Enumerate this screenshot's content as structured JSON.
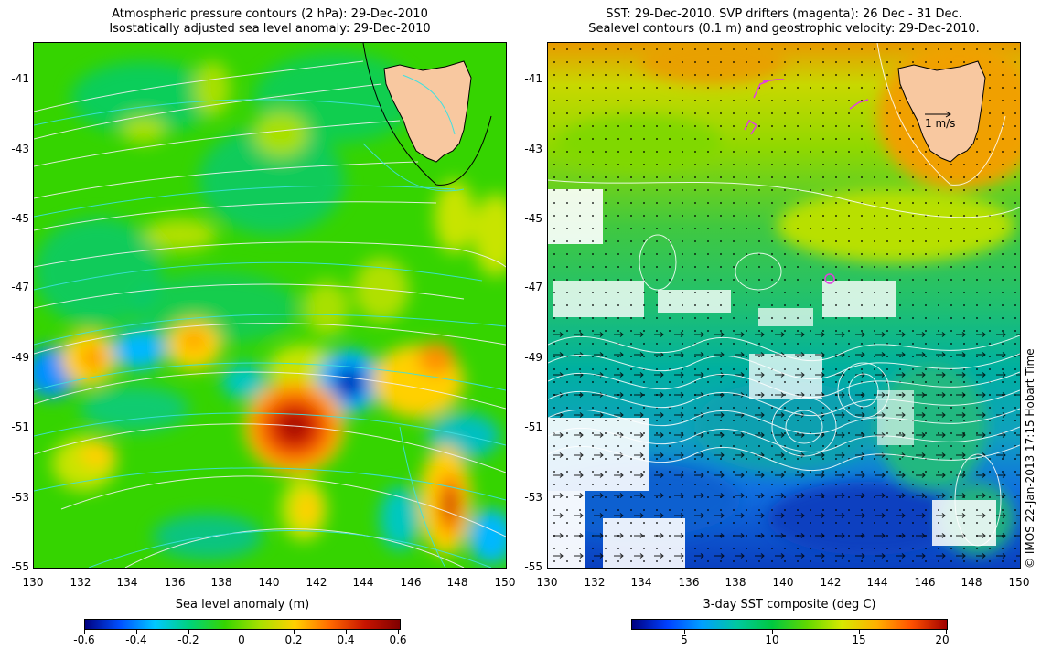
{
  "left_panel": {
    "title_line1": "Atmospheric pressure contours (2 hPa): 29-Dec-2010",
    "title_line2": "Isostatically adjusted sea level anomaly: 29-Dec-2010",
    "colorbar": {
      "label": "Sea level anomaly (m)",
      "ticks": [
        "-0.6",
        "-0.4",
        "-0.2",
        "0",
        "0.2",
        "0.4",
        "0.6"
      ],
      "colors": [
        "#00007f",
        "#0050ff",
        "#00c8ff",
        "#00d27a",
        "#35d400",
        "#a8e000",
        "#ffd000",
        "#ff6a00",
        "#c81400",
        "#7f0000"
      ]
    }
  },
  "right_panel": {
    "title_line1": "SST: 29-Dec-2010. SVP drifters (magenta): 26 Dec - 31 Dec.",
    "title_line2": "Sealevel contours (0.1 m) and geostrophic velocity: 29-Dec-2010.",
    "scale_label": "1 m/s",
    "colorbar": {
      "label": "3-day SST composite (deg C)",
      "ticks": [
        "5",
        "10",
        "15",
        "20"
      ],
      "colors": [
        "#00007f",
        "#0040ff",
        "#00a0ff",
        "#00c8a0",
        "#00c840",
        "#60d800",
        "#d8e800",
        "#ffb000",
        "#ff5000",
        "#a00000"
      ]
    }
  },
  "axes": {
    "lat_ticks": [
      "-41",
      "-43",
      "-45",
      "-47",
      "-49",
      "-51",
      "-53",
      "-55"
    ],
    "lon_ticks": [
      "130",
      "132",
      "134",
      "136",
      "138",
      "140",
      "142",
      "144",
      "146",
      "148",
      "150"
    ]
  },
  "copyright": "© IMOS 22-Jan-2013 17:15 Hobart Time",
  "colors": {
    "land": "#f8c8a0",
    "sla_background": "#35d400",
    "sst_warm": "#e89a00",
    "sst_mid": "#30c830",
    "sst_cold": "#1070e0",
    "pressure_contour": "#f0f0f0",
    "sla_contour": "#40e0e0",
    "drifter": "#e040e0"
  }
}
